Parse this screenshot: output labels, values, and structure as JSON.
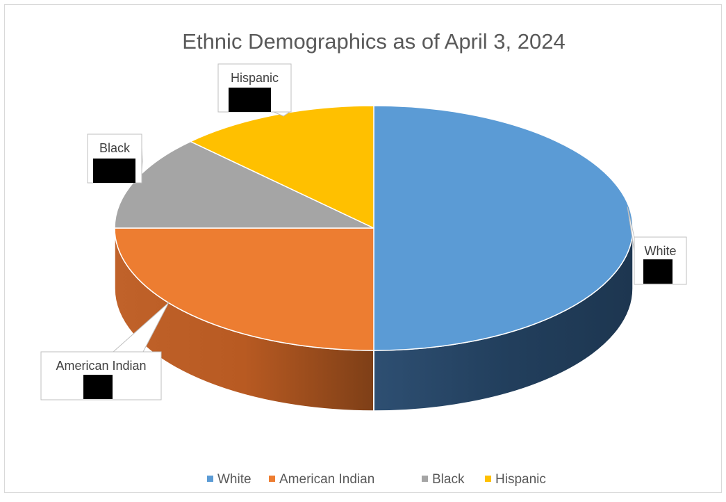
{
  "chart_data": {
    "type": "pie",
    "title": "Ethnic Demographics as of April 3, 2024",
    "categories": [
      "White",
      "American Indian",
      "Black",
      "Hispanic"
    ],
    "values": [
      50,
      25,
      12.5,
      12.5
    ],
    "unit": "%",
    "colors": [
      "#5b9bd5",
      "#ed7d31",
      "#a5a5a5",
      "#ffc000"
    ],
    "data_labels": {
      "show_category_name": true,
      "values_redacted": true
    },
    "legend": {
      "position": "bottom",
      "entries": [
        "White",
        "American Indian",
        "Black",
        "Hispanic"
      ]
    },
    "style": "3d-pie"
  }
}
